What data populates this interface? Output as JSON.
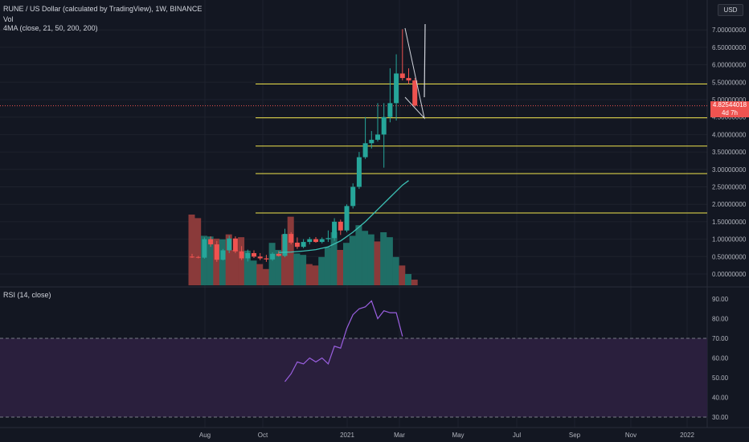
{
  "legend": {
    "symbol_line": "RUNE / US Dollar (calculated by TradingView), 1W, BINANCE",
    "volume_label": "Vol",
    "ma_label": "4MA (close, 21, 50, 200, 200)",
    "rsi_label": "RSI (14, close)"
  },
  "currency_badge": "USD",
  "current_price": {
    "value": "4.82544018",
    "countdown": "4d 7h",
    "numeric": 4.82544018
  },
  "colors": {
    "background": "#131722",
    "up": "#26a69a",
    "down": "#ef5350",
    "level_line": "#f0e44c",
    "ma_line": "#3cc1b5",
    "rsi_line": "#9a5fe0",
    "rsi_band": "#2a1f3d"
  },
  "price_axis": {
    "ticks": [
      "7.00000000",
      "6.50000000",
      "6.00000000",
      "5.50000000",
      "5.00000000",
      "4.50000000",
      "4.00000000",
      "3.50000000",
      "3.00000000",
      "2.50000000",
      "2.00000000",
      "1.50000000",
      "1.00000000",
      "0.50000000",
      "0.00000000"
    ]
  },
  "rsi_axis": {
    "ticks": [
      "90.00",
      "80.00",
      "70.00",
      "60.00",
      "50.00",
      "40.00",
      "30.00"
    ]
  },
  "time_axis": {
    "ticks": [
      "Aug",
      "Oct",
      "2021",
      "Mar",
      "May",
      "Jul",
      "Sep",
      "Nov",
      "2022"
    ]
  },
  "chart_data": {
    "type": "candlestick",
    "price_levels": [
      5.45,
      4.48,
      3.67,
      2.88,
      1.75
    ],
    "candles": [
      {
        "open": 0.5,
        "high": 0.58,
        "low": 0.46,
        "close": 0.49
      },
      {
        "open": 0.49,
        "high": 0.52,
        "low": 0.45,
        "close": 0.47
      },
      {
        "open": 0.47,
        "high": 1.05,
        "low": 0.44,
        "close": 1.0
      },
      {
        "open": 1.0,
        "high": 1.08,
        "low": 0.78,
        "close": 0.85
      },
      {
        "open": 0.85,
        "high": 0.95,
        "low": 0.35,
        "close": 0.41
      },
      {
        "open": 0.41,
        "high": 0.72,
        "low": 0.39,
        "close": 0.68
      },
      {
        "open": 0.68,
        "high": 1.1,
        "low": 0.6,
        "close": 1.02
      },
      {
        "open": 1.02,
        "high": 1.08,
        "low": 0.6,
        "close": 0.65
      },
      {
        "open": 0.65,
        "high": 0.8,
        "low": 0.4,
        "close": 0.45
      },
      {
        "open": 0.45,
        "high": 0.7,
        "low": 0.36,
        "close": 0.6
      },
      {
        "open": 0.6,
        "high": 0.68,
        "low": 0.46,
        "close": 0.5
      },
      {
        "open": 0.5,
        "high": 0.6,
        "low": 0.4,
        "close": 0.45
      },
      {
        "open": 0.45,
        "high": 0.55,
        "low": 0.35,
        "close": 0.42
      },
      {
        "open": 0.42,
        "high": 0.62,
        "low": 0.38,
        "close": 0.58
      },
      {
        "open": 0.58,
        "high": 0.66,
        "low": 0.5,
        "close": 0.52
      },
      {
        "open": 0.52,
        "high": 1.3,
        "low": 0.48,
        "close": 1.15
      },
      {
        "open": 1.15,
        "high": 1.2,
        "low": 0.85,
        "close": 0.9
      },
      {
        "open": 0.9,
        "high": 1.05,
        "low": 0.72,
        "close": 0.78
      },
      {
        "open": 0.78,
        "high": 1.0,
        "low": 0.74,
        "close": 0.92
      },
      {
        "open": 0.92,
        "high": 1.06,
        "low": 0.85,
        "close": 1.0
      },
      {
        "open": 1.0,
        "high": 1.06,
        "low": 0.9,
        "close": 0.92
      },
      {
        "open": 0.92,
        "high": 1.05,
        "low": 0.88,
        "close": 1.0
      },
      {
        "open": 1.0,
        "high": 1.25,
        "low": 0.92,
        "close": 1.03
      },
      {
        "open": 1.03,
        "high": 1.6,
        "low": 0.95,
        "close": 1.5
      },
      {
        "open": 1.5,
        "high": 1.56,
        "low": 1.12,
        "close": 1.25
      },
      {
        "open": 1.25,
        "high": 2.0,
        "low": 1.2,
        "close": 1.95
      },
      {
        "open": 1.95,
        "high": 2.6,
        "low": 1.88,
        "close": 2.5
      },
      {
        "open": 2.5,
        "high": 3.5,
        "low": 2.44,
        "close": 3.35
      },
      {
        "open": 3.35,
        "high": 4.5,
        "low": 3.3,
        "close": 3.75
      },
      {
        "open": 3.75,
        "high": 4.1,
        "low": 3.6,
        "close": 3.85
      },
      {
        "open": 3.85,
        "high": 4.9,
        "low": 3.8,
        "close": 4.0
      },
      {
        "open": 4.0,
        "high": 4.9,
        "low": 3.05,
        "close": 4.5
      },
      {
        "open": 4.5,
        "high": 5.9,
        "low": 4.35,
        "close": 4.9
      },
      {
        "open": 4.9,
        "high": 6.3,
        "low": 4.4,
        "close": 5.75
      },
      {
        "open": 5.75,
        "high": 7.02,
        "low": 5.55,
        "close": 5.62
      },
      {
        "open": 5.62,
        "high": 5.9,
        "low": 5.45,
        "close": 5.55
      },
      {
        "open": 5.55,
        "high": 5.62,
        "low": 4.8,
        "close": 4.83
      }
    ],
    "volume": [
      {
        "value": 1.0,
        "up": false
      },
      {
        "value": 0.95,
        "up": false
      },
      {
        "value": 0.7,
        "up": true
      },
      {
        "value": 0.69,
        "up": true
      },
      {
        "value": 0.66,
        "up": false
      },
      {
        "value": 0.65,
        "up": true
      },
      {
        "value": 0.72,
        "up": false
      },
      {
        "value": 0.5,
        "up": false
      },
      {
        "value": 0.68,
        "up": false
      },
      {
        "value": 0.49,
        "up": true
      },
      {
        "value": 0.35,
        "up": true
      },
      {
        "value": 0.3,
        "up": false
      },
      {
        "value": 0.23,
        "up": false
      },
      {
        "value": 0.6,
        "up": true
      },
      {
        "value": 0.5,
        "up": true
      },
      {
        "value": 0.72,
        "up": false
      },
      {
        "value": 0.97,
        "up": false
      },
      {
        "value": 0.45,
        "up": true
      },
      {
        "value": 0.43,
        "up": true
      },
      {
        "value": 0.3,
        "up": false
      },
      {
        "value": 0.28,
        "up": false
      },
      {
        "value": 0.4,
        "up": true
      },
      {
        "value": 0.54,
        "up": true
      },
      {
        "value": 0.75,
        "up": true
      },
      {
        "value": 0.5,
        "up": false
      },
      {
        "value": 0.6,
        "up": true
      },
      {
        "value": 0.7,
        "up": true
      },
      {
        "value": 0.85,
        "up": true
      },
      {
        "value": 0.77,
        "up": true
      },
      {
        "value": 0.72,
        "up": true
      },
      {
        "value": 0.62,
        "up": false
      },
      {
        "value": 0.75,
        "up": true
      },
      {
        "value": 0.68,
        "up": true
      },
      {
        "value": 0.4,
        "up": true
      },
      {
        "value": 0.28,
        "up": false
      },
      {
        "value": 0.16,
        "up": true
      },
      {
        "value": 0.08,
        "up": false
      }
    ],
    "ma": [
      [
        14,
        0.62
      ],
      [
        16,
        0.63
      ],
      [
        18,
        0.66
      ],
      [
        20,
        0.7
      ],
      [
        22,
        0.78
      ],
      [
        24,
        0.95
      ],
      [
        26,
        1.2
      ],
      [
        28,
        1.5
      ],
      [
        30,
        1.85
      ],
      [
        32,
        2.2
      ],
      [
        34,
        2.55
      ],
      [
        35,
        2.68
      ]
    ],
    "rsi": [
      [
        15,
        48
      ],
      [
        16,
        52
      ],
      [
        17,
        58
      ],
      [
        18,
        57
      ],
      [
        19,
        60
      ],
      [
        20,
        58
      ],
      [
        21,
        60
      ],
      [
        22,
        57
      ],
      [
        23,
        66
      ],
      [
        24,
        65
      ],
      [
        25,
        75
      ],
      [
        26,
        82
      ],
      [
        27,
        85
      ],
      [
        28,
        86
      ],
      [
        29,
        89
      ],
      [
        30,
        80
      ],
      [
        31,
        84
      ],
      [
        32,
        83
      ],
      [
        33,
        83
      ],
      [
        34,
        71
      ]
    ]
  }
}
